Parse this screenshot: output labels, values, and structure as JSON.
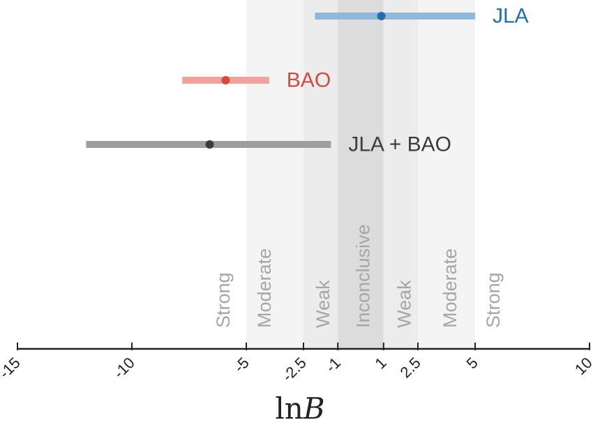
{
  "chart_data": {
    "type": "errorbar",
    "xlabel_text": "ln",
    "xlabel_var": "B",
    "xlim": [
      -15,
      10
    ],
    "xticks": [
      {
        "value": -15,
        "label": "-15"
      },
      {
        "value": -10,
        "label": "-10"
      },
      {
        "value": -5,
        "label": "-5"
      },
      {
        "value": -2.5,
        "label": "-2.5"
      },
      {
        "value": -1,
        "label": "-1"
      },
      {
        "value": 1,
        "label": "1"
      },
      {
        "value": 2.5,
        "label": "2.5"
      },
      {
        "value": 5,
        "label": "5"
      },
      {
        "value": 10,
        "label": "10"
      }
    ],
    "series": [
      {
        "name": "JLA",
        "center": 0.9,
        "low": -2.0,
        "high": 5.0,
        "color": "#1f6eb0",
        "bar_color": "#8fb8da"
      },
      {
        "name": "BAO",
        "center": -5.9,
        "low": -7.8,
        "high": -4.0,
        "color": "#d9483b",
        "bar_color": "#f0a39c"
      },
      {
        "name": "JLA + BAO",
        "center": -6.6,
        "low": -12.0,
        "high": -1.3,
        "color": "#3c3c3c",
        "bar_color": "#9e9e9e"
      }
    ],
    "bands": [
      {
        "from": -5,
        "to": -2.5,
        "label": "Moderate",
        "color": "#f4f4f4"
      },
      {
        "from": -2.5,
        "to": -1,
        "label": "Weak",
        "color": "#ececec"
      },
      {
        "from": -1,
        "to": 1,
        "label": "Inconclusive",
        "color": "#dcdcdc"
      },
      {
        "from": 1,
        "to": 2.5,
        "label": "Weak",
        "color": "#ececec"
      },
      {
        "from": 2.5,
        "to": 5,
        "label": "Moderate",
        "color": "#f4f4f4"
      }
    ],
    "band_labels": [
      {
        "position": -6,
        "label": "Strong"
      },
      {
        "position": -4.2,
        "label": "Moderate"
      },
      {
        "position": -1.65,
        "label": "Weak"
      },
      {
        "position": 0.1,
        "label": "Inconclusive"
      },
      {
        "position": 1.9,
        "label": "Weak"
      },
      {
        "position": 3.9,
        "label": "Moderate"
      },
      {
        "position": 5.8,
        "label": "Strong"
      }
    ]
  }
}
